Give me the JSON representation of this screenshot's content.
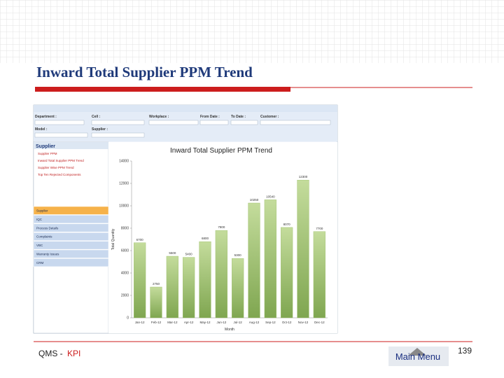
{
  "slide": {
    "title": "Inward Total Supplier PPM Trend",
    "footer_left": "QMS -",
    "footer_accent": "KPI",
    "main_menu": "Main Menu",
    "page_number": 139
  },
  "app": {
    "filters": [
      "Department :",
      "Cell :",
      "Workplace :",
      "From Date :",
      "To Date :",
      "Customer :",
      "Model :",
      "Supplier :"
    ],
    "sidebar_header": "Supplier",
    "sidebar_items": [
      "Supplier PPM",
      "Inward Total Supplier PPM Trend",
      "Supplier Wise PPM Trend",
      "Top Ten Rejected Components"
    ],
    "nav_items": [
      "Supplier",
      "IQC",
      "Process Details",
      "Complaints",
      "VBC",
      "Warranty Issues",
      "CRM"
    ]
  },
  "chart_data": {
    "type": "bar",
    "title": "Inward Total Supplier PPM Trend",
    "x_label": "Month",
    "y_label": "Total Quantity",
    "categories": [
      "Jan-12",
      "Feb-12",
      "Mar-12",
      "Apr-12",
      "May-12",
      "Jun-12",
      "Jul-12",
      "Aug-12",
      "Sep-12",
      "Oct-12",
      "Nov-12",
      "Dec-12"
    ],
    "values": [
      6700,
      2750,
      5500,
      5400,
      6800,
      7800,
      5300,
      10250,
      10540,
      8070,
      12300,
      7700
    ],
    "color": "#9dbf6a",
    "ylim": [
      0,
      14000
    ],
    "yticks": [
      0,
      2000,
      4000,
      6000,
      8000,
      10000,
      12000,
      14000
    ],
    "grid": false
  }
}
